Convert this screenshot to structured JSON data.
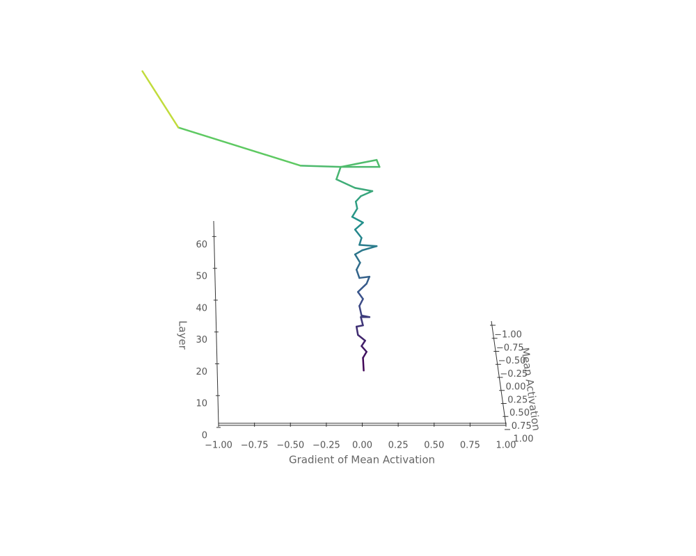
{
  "chart_data": {
    "type": "line3d",
    "xlabel": "Gradient of Mean Activation",
    "ylabel": "Layer",
    "zlabel": "Mean Activation",
    "xlim": [
      -1,
      1
    ],
    "ylim": [
      0,
      67.5
    ],
    "zlim": [
      -1,
      1
    ],
    "xticks": [
      {
        "value": -1,
        "label": "−1.00"
      },
      {
        "value": -0.75,
        "label": "−0.75"
      },
      {
        "value": -0.5,
        "label": "−0.50"
      },
      {
        "value": -0.25,
        "label": "−0.25"
      },
      {
        "value": 0,
        "label": "0.00"
      },
      {
        "value": 0.25,
        "label": "0.25"
      },
      {
        "value": 0.5,
        "label": "0.50"
      },
      {
        "value": 0.75,
        "label": "0.75"
      },
      {
        "value": 1,
        "label": "1.00"
      }
    ],
    "yticks": [
      0,
      10,
      20,
      30,
      40,
      50,
      60
    ],
    "zticks": [
      {
        "value": -1,
        "label": "−1.00"
      },
      {
        "value": -0.75,
        "label": "−0.75"
      },
      {
        "value": -0.5,
        "label": "−0.50"
      },
      {
        "value": -0.25,
        "label": "−0.25"
      },
      {
        "value": 0,
        "label": "0.00"
      },
      {
        "value": 0.25,
        "label": "0.25"
      },
      {
        "value": 0.5,
        "label": "0.50"
      },
      {
        "value": 0.75,
        "label": "0.75"
      },
      {
        "value": 1,
        "label": "1.00"
      }
    ],
    "colormap": [
      "#440154",
      "#3b528b",
      "#21918c",
      "#5ec962",
      "#fde725"
    ],
    "series": [
      {
        "x": [
          0.01,
          0.005,
          0.03,
          -0.005,
          0.02,
          -0.03,
          -0.04,
          0.005,
          -0.01,
          0.05,
          -0.005,
          -0.02,
          0.005,
          -0.03,
          0.03,
          0.05,
          -0.02,
          -0.04,
          -0.015,
          -0.05,
          0,
          0.1,
          -0.02,
          -0.005,
          -0.05,
          0.005,
          -0.07,
          -0.035,
          -0.045,
          -0.01,
          0.07,
          -0.05,
          -0.18,
          -0.15,
          0.12,
          0.1,
          -0.15,
          -0.43,
          -1.28,
          -1.53
        ],
        "y": [
          20.5,
          24.5,
          26.4,
          28.2,
          29.9,
          31.7,
          34.3,
          34.7,
          37.3,
          37.3,
          37.8,
          40.8,
          43.0,
          45.2,
          47.8,
          50.0,
          49.6,
          52.2,
          54.4,
          57.0,
          58.3,
          59.6,
          60.0,
          62.2,
          64.8,
          67.0,
          68.8,
          71.4,
          73.6,
          75.3,
          76.9,
          77.9,
          80.6,
          84.5,
          84.5,
          86.7,
          84.5,
          84.9,
          96.9,
          114.6
        ]
      }
    ]
  }
}
